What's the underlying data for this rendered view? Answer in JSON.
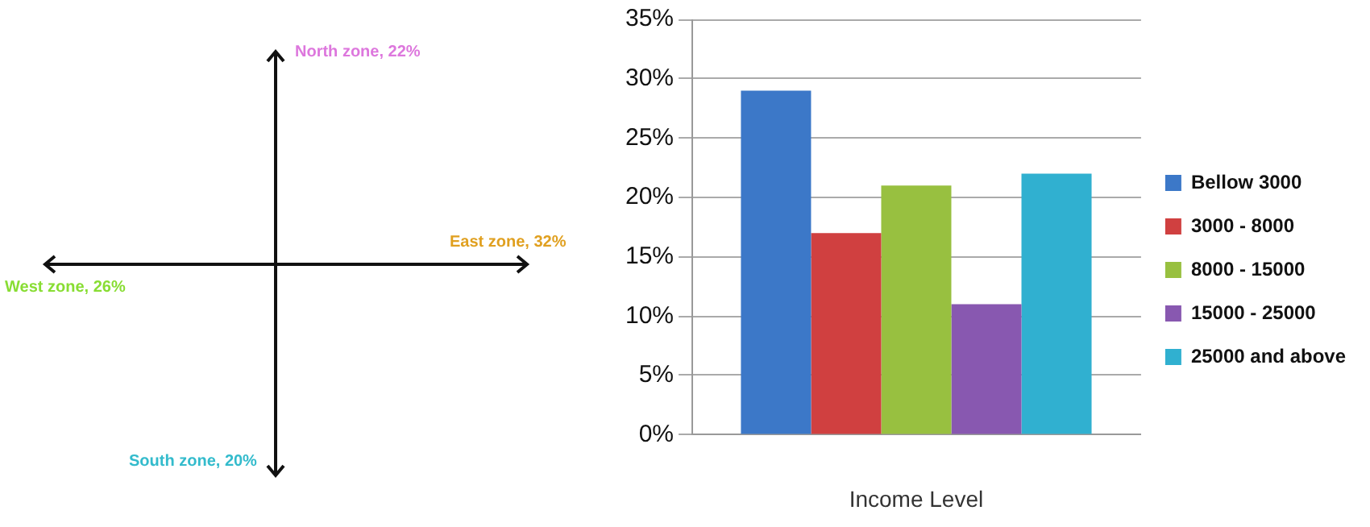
{
  "chart_data": [
    {
      "type": "other",
      "categories": [
        "North zone, 22%",
        "East zone, 32%",
        "West zone, 26%",
        "South zone, 20%"
      ],
      "colors": [
        "#dd77dd",
        "#e0a020",
        "#88dd33",
        "#33bbcc"
      ]
    },
    {
      "type": "bar",
      "categories": [
        null
      ],
      "xlabel": "Income Level",
      "series": [
        {
          "name": "Bellow 3000",
          "color": "#3c78c8",
          "values": [
            29
          ]
        },
        {
          "name": "3000 - 8000",
          "color": "#d04040",
          "values": [
            17
          ]
        },
        {
          "name": "8000 - 15000",
          "color": "#98c040",
          "values": [
            21
          ]
        },
        {
          "name": "15000 - 25000",
          "color": "#8858b0",
          "values": [
            11
          ]
        },
        {
          "name": "25000 and above",
          "color": "#30b0d0",
          "values": [
            22
          ]
        }
      ],
      "ylim": [
        0,
        35
      ],
      "yticks": [
        {
          "value": 0,
          "label": "0%"
        },
        {
          "value": 5,
          "label": "5%"
        },
        {
          "value": 10,
          "label": "10%"
        },
        {
          "value": 15,
          "label": "15%"
        },
        {
          "value": 20,
          "label": "20%"
        },
        {
          "value": 25,
          "label": "25%"
        },
        {
          "value": 30,
          "label": "30%"
        },
        {
          "value": 35,
          "label": "35%"
        }
      ],
      "grid": "y",
      "legend": "right"
    }
  ]
}
